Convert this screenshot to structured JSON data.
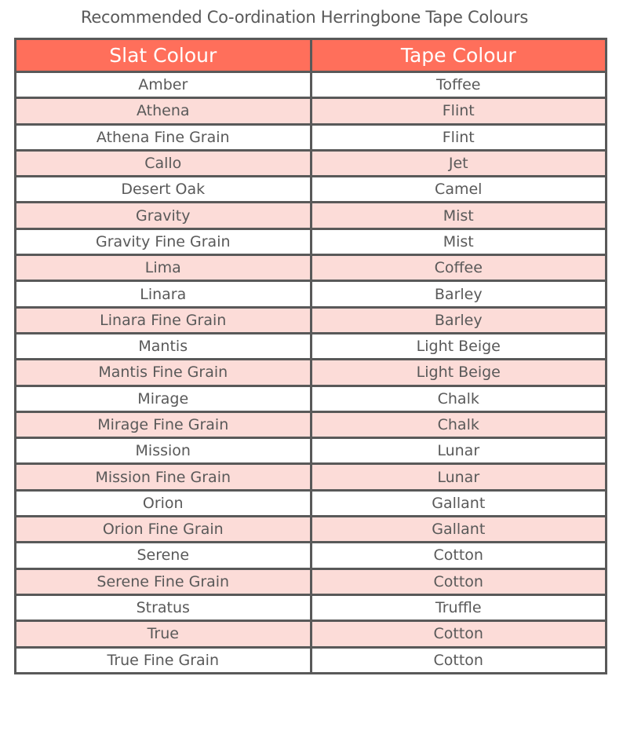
{
  "title": "Recommended Co-ordination Herringbone Tape Colours",
  "colors": {
    "header_bg": "#FF6F5B",
    "alt_row_bg": "#FCDCD8",
    "border": "#595959",
    "text": "#595959"
  },
  "table": {
    "headers": [
      "Slat Colour",
      "Tape Colour"
    ],
    "rows": [
      [
        "Amber",
        "Toffee"
      ],
      [
        "Athena",
        "Flint"
      ],
      [
        "Athena Fine Grain",
        "Flint"
      ],
      [
        "Callo",
        "Jet"
      ],
      [
        "Desert Oak",
        "Camel"
      ],
      [
        "Gravity",
        "Mist"
      ],
      [
        "Gravity Fine Grain",
        "Mist"
      ],
      [
        "Lima",
        "Coffee"
      ],
      [
        "Linara",
        "Barley"
      ],
      [
        "Linara Fine Grain",
        "Barley"
      ],
      [
        "Mantis",
        "Light Beige"
      ],
      [
        "Mantis Fine Grain",
        "Light Beige"
      ],
      [
        "Mirage",
        "Chalk"
      ],
      [
        "Mirage Fine Grain",
        "Chalk"
      ],
      [
        "Mission",
        "Lunar"
      ],
      [
        "Mission Fine Grain",
        "Lunar"
      ],
      [
        "Orion",
        "Gallant"
      ],
      [
        "Orion Fine Grain",
        "Gallant"
      ],
      [
        "Serene",
        "Cotton"
      ],
      [
        "Serene Fine Grain",
        "Cotton"
      ],
      [
        "Stratus",
        "Truffle"
      ],
      [
        "True",
        "Cotton"
      ],
      [
        "True Fine Grain",
        "Cotton"
      ]
    ]
  }
}
